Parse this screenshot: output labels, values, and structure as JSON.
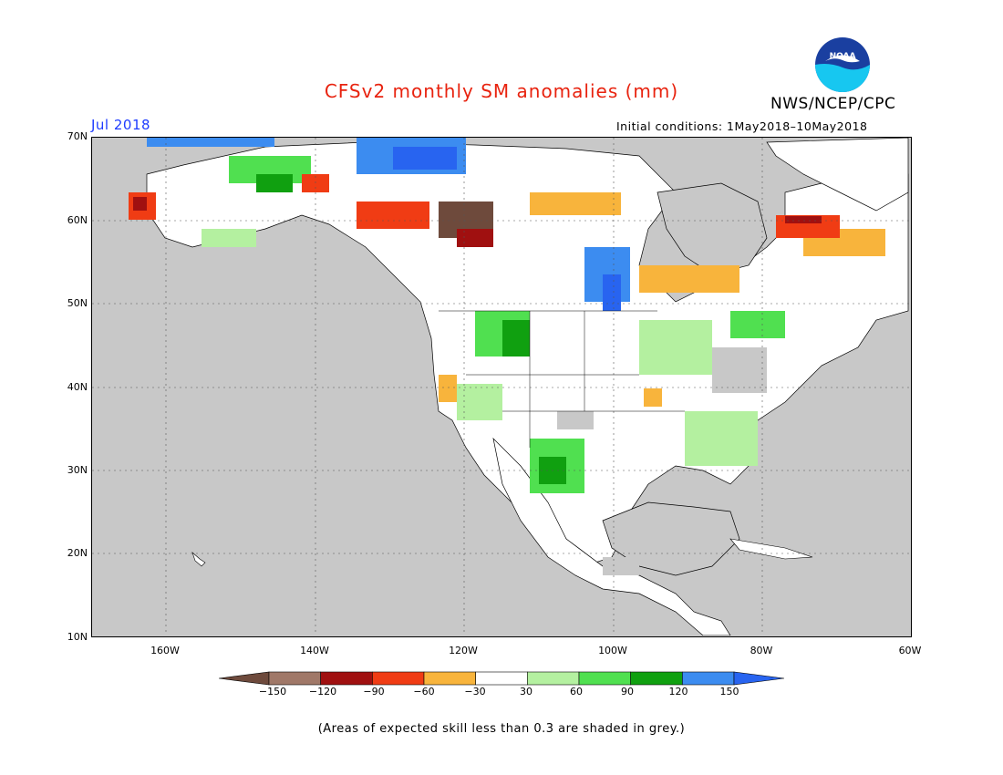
{
  "title": "CFSv2 monthly SM anomalies (mm)",
  "agency": "NWS/NCEP/CPC",
  "logo_text": "NOAA",
  "month": "Jul 2018",
  "initial_conditions": "Initial conditions: 1May2018–10May2018",
  "lat_labels": [
    "70N",
    "60N",
    "50N",
    "40N",
    "30N",
    "20N",
    "10N"
  ],
  "lon_labels": [
    "160W",
    "140W",
    "120W",
    "100W",
    "80W",
    "60W"
  ],
  "colorbar": {
    "labels": [
      "−150",
      "−120",
      "−90",
      "−60",
      "−30",
      "30",
      "60",
      "90",
      "120",
      "150"
    ],
    "colors": [
      "#6e4a3c",
      "#a07868",
      "#a01010",
      "#f03c14",
      "#f8b43c",
      "#ffffff",
      "#b4f0a0",
      "#50e050",
      "#10a010",
      "#3c8cf0",
      "#2864f0"
    ]
  },
  "footer": "(Areas of expected skill less than 0.3 are shaded in grey.)",
  "map_extent": {
    "lon_min": -170,
    "lon_max": -60,
    "lat_min": 10,
    "lat_max": 70
  }
}
